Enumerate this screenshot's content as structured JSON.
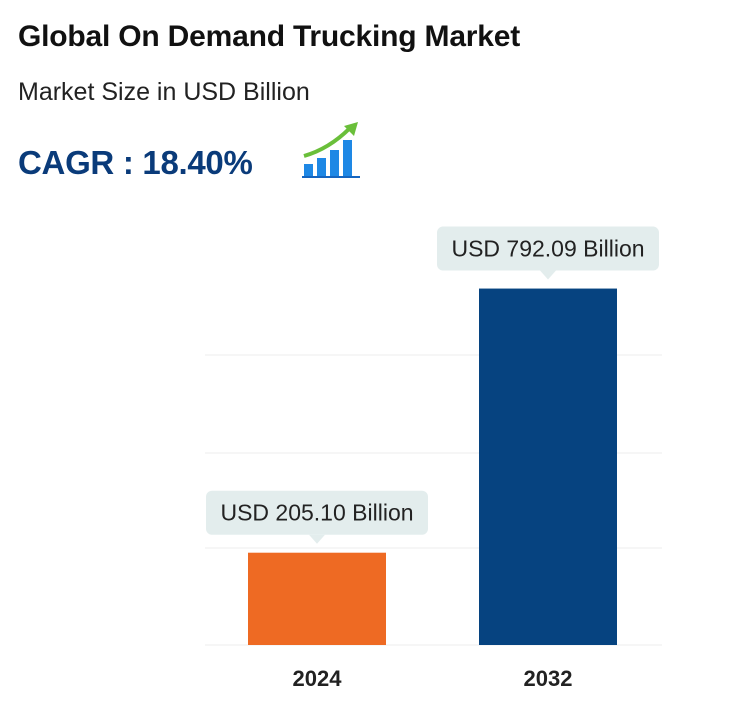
{
  "header": {
    "title": "Global On Demand Trucking Market",
    "subtitle": "Market Size in USD Billion",
    "cagr_label": "CAGR : 18.40%"
  },
  "icons": {
    "growth": "bar-chart-growth-arrow-icon"
  },
  "colors": {
    "accent_text": "#0a3b7a",
    "bar_2024": "#ee6a23",
    "bar_2032": "#064380",
    "callout_bg": "#e3eded",
    "icon_bars": "#1e88e5",
    "icon_arrow": "#6abf3a"
  },
  "chart_data": {
    "type": "bar",
    "title": "",
    "xlabel": "",
    "ylabel": "",
    "categories": [
      "2024",
      "2032"
    ],
    "values": [
      205.1,
      792.09
    ],
    "data_labels": [
      "USD 205.10 Billion",
      "USD 792.09 Billion"
    ],
    "bar_colors": [
      "#ee6a23",
      "#064380"
    ],
    "ylim": [
      0,
      800
    ],
    "grid": true,
    "legend": "none"
  }
}
